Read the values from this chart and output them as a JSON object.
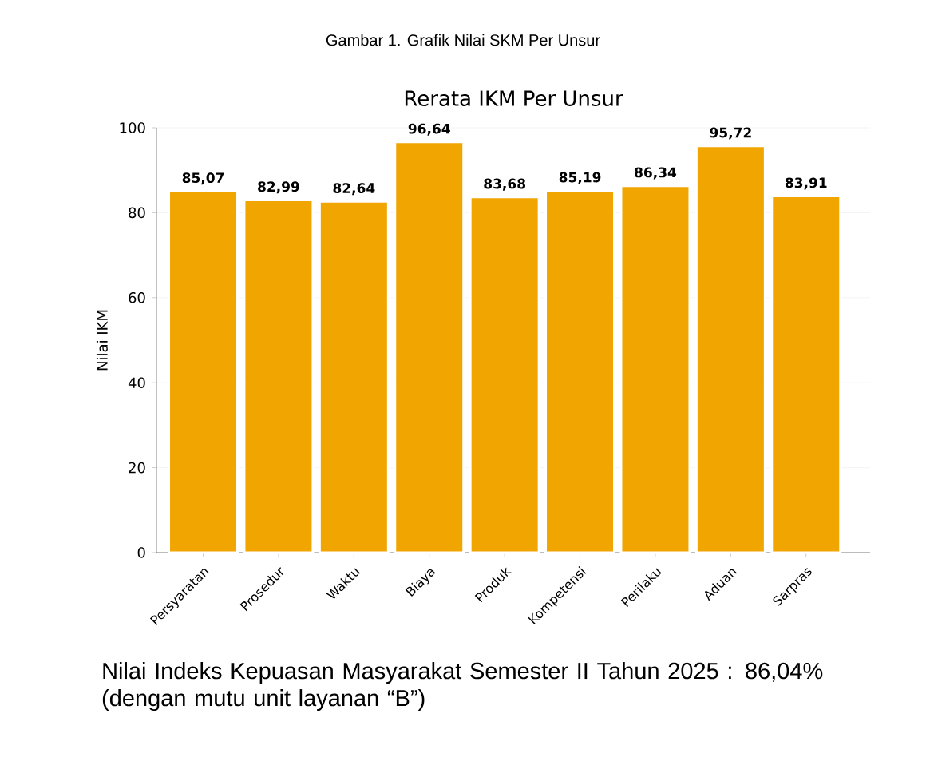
{
  "chart_data": {
    "type": "bar",
    "title": "Rerata IKM Per Unsur",
    "ylabel": "Nilai IKM",
    "categories": [
      "Persyaratan",
      "Prosedur",
      "Waktu",
      "Biaya",
      "Produk",
      "Kompetensi",
      "Perilaku",
      "Aduan",
      "Sarpras"
    ],
    "values": [
      85.07,
      82.99,
      82.64,
      96.64,
      83.68,
      85.19,
      86.34,
      95.72,
      83.91
    ],
    "value_labels": [
      "85,07",
      "82,99",
      "82,64",
      "96,64",
      "83,68",
      "85,19",
      "86,34",
      "95,72",
      "83,91"
    ],
    "color": "#f0a500",
    "ylim": [
      0,
      100
    ],
    "yticks": [
      0,
      20,
      40,
      60,
      80,
      100
    ],
    "grid": "y",
    "annotations": [
      "Gambar 1. Grafik Nilai SKM Per Unsur",
      "Nilai Indeks Kepuasan Masyarakat Semester II Tahun 2025 : 86,04% (dengan mutu unit layanan “B”)"
    ]
  }
}
